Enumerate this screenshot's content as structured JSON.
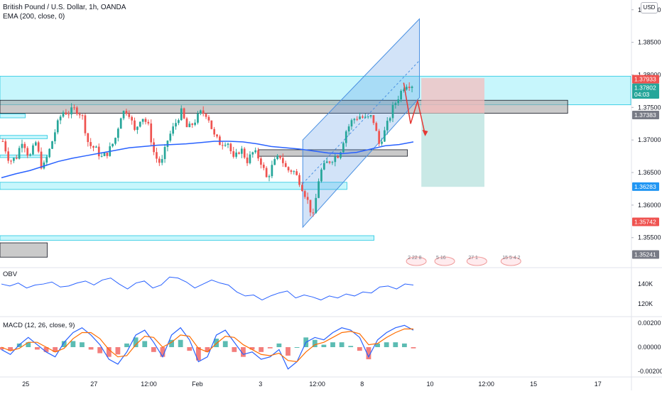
{
  "header": {
    "symbol_line": "British Pound / U.S. Dollar, 1h, OANDA",
    "ema_line": "EMA (200, close, 0)",
    "currency_button": "USD"
  },
  "colors": {
    "up": "#26a69a",
    "down": "#ef5350",
    "ema": "#2962ff",
    "zone_cyan": "#5ee4f5",
    "zone_gray": "#9e9e9e",
    "channel": "#4a90e2",
    "long_tp": "#b2dfdb",
    "short_sl": "#f8bbbb",
    "obv": "#2962ff",
    "macd": "#2962ff",
    "signal": "#ff6d00"
  },
  "chart_data": [
    {
      "type": "candlestick",
      "title": "British Pound / U.S. Dollar, 1h, OANDA",
      "indicator": "EMA (200, close, 0)",
      "ylim": [
        1.3505,
        1.3915
      ],
      "y_ticks": [
        "1.39000",
        "1.38500",
        "1.38000",
        "1.37500",
        "1.37000",
        "1.36500",
        "1.36000",
        "1.35500"
      ],
      "price_labels": [
        {
          "value": "1.37933",
          "y": 1.37933,
          "color": "#ef5350"
        },
        {
          "value": "1.37802",
          "y": 1.37802,
          "color": "#26a69a"
        },
        {
          "value": "04:03",
          "y": 1.377,
          "color": "#26a69a"
        },
        {
          "value": "1.37383",
          "y": 1.37383,
          "color": "#787b86"
        },
        {
          "value": "1.36283",
          "y": 1.36283,
          "color": "#2196f3"
        },
        {
          "value": "1.35742",
          "y": 1.35742,
          "color": "#ef5350"
        },
        {
          "value": "1.35241",
          "y": 1.35241,
          "color": "#787b86"
        }
      ],
      "x_labels": [
        "25",
        "27",
        "12:00",
        "Feb",
        "3",
        "12:00",
        "8",
        "10",
        "12:00",
        "15",
        "17"
      ],
      "close_path": [
        1.3698,
        1.3668,
        1.3672,
        1.3702,
        1.3672,
        1.3696,
        1.3654,
        1.3682,
        1.3716,
        1.3743,
        1.3742,
        1.3748,
        1.3738,
        1.3693,
        1.3687,
        1.3673,
        1.3682,
        1.3701,
        1.3742,
        1.3746,
        1.3712,
        1.3738,
        1.3723,
        1.3676,
        1.3662,
        1.3701,
        1.3722,
        1.3744,
        1.3716,
        1.3728,
        1.3742,
        1.374,
        1.3706,
        1.3694,
        1.37,
        1.3668,
        1.3688,
        1.3668,
        1.3682,
        1.367,
        1.364,
        1.3664,
        1.3676,
        1.3654,
        1.3653,
        1.3636,
        1.3612,
        1.358,
        1.3649,
        1.3664,
        1.3672,
        1.3679,
        1.3714,
        1.3731,
        1.3737,
        1.3732,
        1.3736,
        1.3694,
        1.3716,
        1.3747,
        1.3768,
        1.3787,
        1.3785
      ],
      "ema_path": [
        1.3642,
        1.3648,
        1.3653,
        1.366,
        1.3667,
        1.3672,
        1.3676,
        1.368,
        1.3684,
        1.3688,
        1.369,
        1.3692,
        1.3693,
        1.3694,
        1.3696,
        1.3698,
        1.3698,
        1.3697,
        1.3694,
        1.369,
        1.3688,
        1.3686,
        1.3683,
        1.368,
        1.3679,
        1.3681,
        1.3686,
        1.3691,
        1.3693,
        1.3697
      ],
      "zones": [
        {
          "kind": "cyan",
          "y1": 1.3798,
          "y2": 1.3754,
          "x_start": 0.0,
          "x_end": 1.0
        },
        {
          "kind": "gray",
          "y1": 1.3761,
          "y2": 1.3741,
          "x_start": 0.0,
          "x_end": 0.9
        },
        {
          "kind": "cyan",
          "y1": 1.374,
          "y2": 1.3734,
          "x_start": 0.0,
          "x_end": 0.04
        },
        {
          "kind": "cyan",
          "y1": 1.3707,
          "y2": 1.3702,
          "x_start": 0.0,
          "x_end": 0.075
        },
        {
          "kind": "gray",
          "y1": 1.3685,
          "y2": 1.3675,
          "x_start": 0.41,
          "x_end": 0.646
        },
        {
          "kind": "cyan",
          "y1": 1.3677,
          "y2": 1.3673,
          "x_start": 0.0,
          "x_end": 0.075
        },
        {
          "kind": "cyan",
          "y1": 1.3635,
          "y2": 1.3624,
          "x_start": 0.0,
          "x_end": 0.55
        },
        {
          "kind": "cyan",
          "y1": 1.3553,
          "y2": 1.3546,
          "x_start": 0.0,
          "x_end": 0.593
        },
        {
          "kind": "gray",
          "y1": 1.3542,
          "y2": 1.352,
          "x_start": 0.0,
          "x_end": 0.075
        }
      ],
      "channel": {
        "lower_start": [
          0.48,
          1.3566
        ],
        "lower_end": [
          0.665,
          1.3765
        ],
        "upper_start": [
          0.48,
          1.37
        ],
        "upper_end": [
          0.665,
          1.3886
        ],
        "mid_end": [
          0.665,
          1.3822
        ]
      },
      "position_tool": {
        "entry": 1.3741,
        "stop": 1.3795,
        "target": 1.3628,
        "x_start": 0.668,
        "x_end": 0.768
      },
      "arrow_path": [
        [
          0.64,
          1.3788
        ],
        [
          0.651,
          1.3725
        ],
        [
          0.662,
          1.376
        ],
        [
          0.674,
          1.3708
        ]
      ],
      "event_badges": [
        "2",
        "22",
        "8",
        "5",
        "16",
        "27",
        "1",
        "15",
        "5",
        "4",
        "2"
      ]
    },
    {
      "type": "line",
      "title": "OBV",
      "y_ticks": [
        "140K",
        "120K"
      ],
      "ylim": [
        108000,
        155000
      ],
      "values": [
        140,
        138,
        141,
        136,
        139,
        140,
        142,
        137,
        138,
        141,
        143,
        139,
        144,
        146,
        140,
        135,
        141,
        143,
        136,
        139,
        147,
        146,
        142,
        136,
        140,
        144,
        141,
        139,
        132,
        128,
        129,
        124,
        128,
        131,
        133,
        126,
        129,
        127,
        124,
        128,
        126,
        130,
        128,
        132,
        131,
        137,
        138,
        135,
        140,
        139
      ]
    },
    {
      "type": "bar",
      "title": "MACD (12, 26, close, 9)",
      "y_ticks": [
        "0.00200",
        "0.00000",
        "-0.00200"
      ],
      "ylim": [
        -0.0024,
        0.0024
      ],
      "macd": [
        -0.0002,
        -0.0006,
        0.0002,
        0.0008,
        0.0002,
        -0.0004,
        -0.0008,
        0.0004,
        0.0012,
        0.0016,
        0.001,
        0.0002,
        -0.001,
        -0.0014,
        -0.0004,
        0.001,
        0.0014,
        0.0004,
        -0.0008,
        0.001,
        0.0016,
        0.0006,
        -0.0012,
        -0.0008,
        0.001,
        0.0014,
        0.0004,
        -0.0006,
        -0.0004,
        -0.001,
        -0.0008,
        -0.0002,
        -0.0018,
        -0.0012,
        0.0004,
        0.0008,
        0.0006,
        0.0012,
        0.0016,
        0.0014,
        0.0008,
        -0.0008,
        0.0006,
        0.0012,
        0.0016,
        0.0018,
        0.0014
      ],
      "signal": [
        0.0,
        -0.0003,
        -0.0001,
        0.0004,
        0.0004,
        0.0,
        -0.0004,
        -0.0001,
        0.0007,
        0.0012,
        0.0012,
        0.0007,
        -0.0002,
        -0.0008,
        -0.0007,
        0.0002,
        0.0009,
        0.0008,
        0.0,
        0.0004,
        0.001,
        0.0009,
        -0.0001,
        -0.0004,
        0.0003,
        0.0009,
        0.0008,
        0.0002,
        -0.0002,
        -0.0006,
        -0.0007,
        -0.0005,
        -0.0011,
        -0.0012,
        -0.0004,
        0.0002,
        0.0004,
        0.0008,
        0.0012,
        0.0013,
        0.0011,
        0.0002,
        0.0003,
        0.0008,
        0.0012,
        0.0015,
        0.0015
      ]
    }
  ]
}
